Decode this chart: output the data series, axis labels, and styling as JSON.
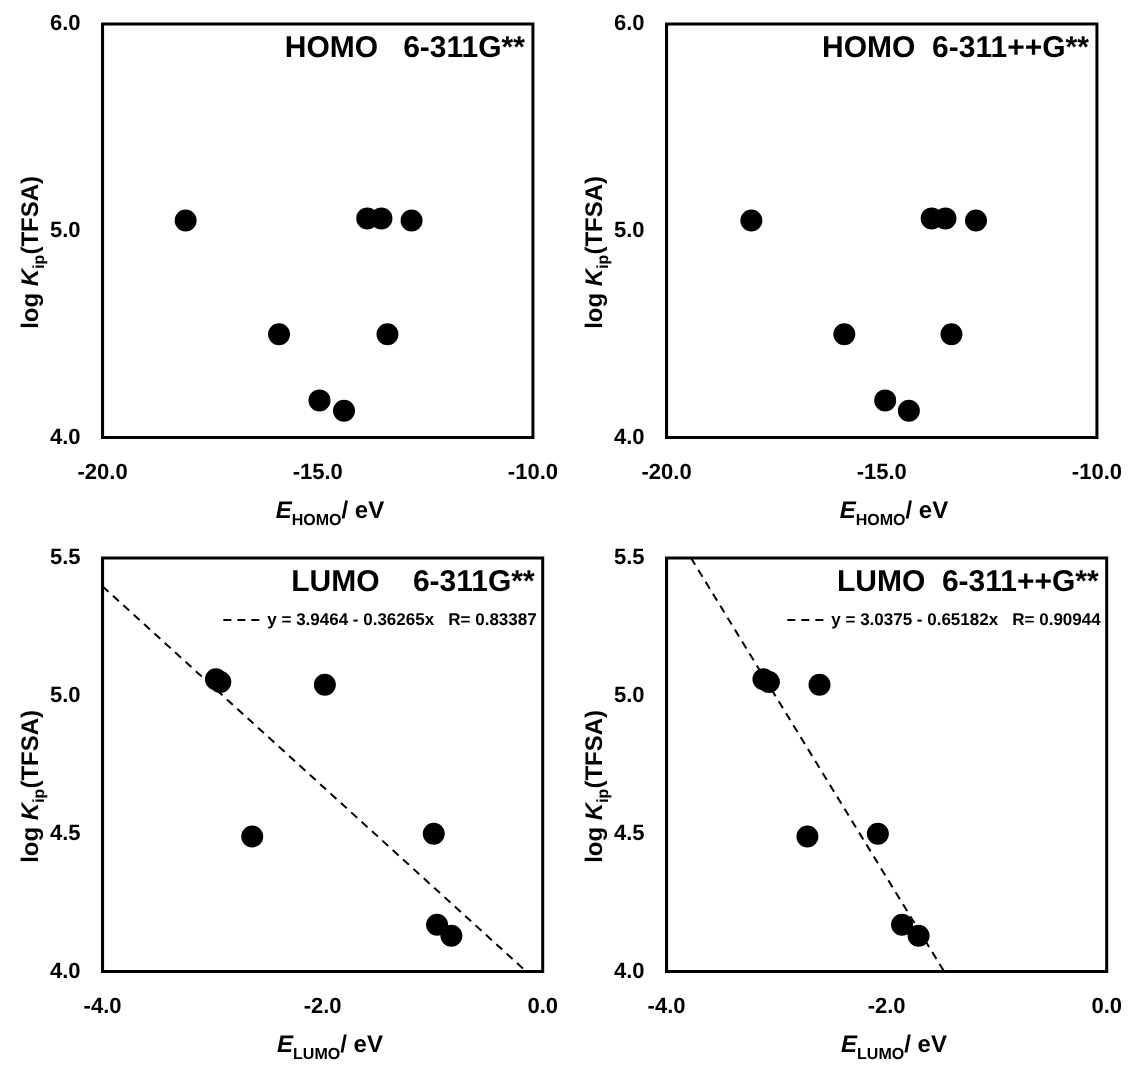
{
  "chart_data": [
    {
      "type": "scatter",
      "title": "HOMO   6-311G**",
      "xlabel": "E$_{HOMO}$/ eV",
      "ylabel": "log K$_{ip}$(TFSA)",
      "xlim": [
        -20,
        -10
      ],
      "xticks": [
        {
          "value": -20,
          "label": "-20.0"
        },
        {
          "value": -15,
          "label": "-15.0"
        },
        {
          "value": -10,
          "label": "-10.0"
        }
      ],
      "ylim": [
        4,
        6
      ],
      "yticks": [
        {
          "value": 4,
          "label": "4.0"
        },
        {
          "value": 5,
          "label": "5.0"
        },
        {
          "value": 6,
          "label": "6.0"
        }
      ],
      "grid": false,
      "legend": false,
      "marker": "circle",
      "series": [
        {
          "color": "#000000",
          "x": [
            -18.07,
            -15.9,
            -14.96,
            -14.39,
            -13.85,
            -13.52,
            -13.38,
            -12.82
          ],
          "values": [
            5.05,
            4.5,
            4.18,
            4.13,
            5.06,
            5.06,
            4.5,
            5.05
          ]
        }
      ]
    },
    {
      "type": "scatter",
      "title": "HOMO  6-311++G**",
      "xlabel": "E$_{HOMO}$/ eV",
      "ylabel": "log K$_{ip}$(TFSA)",
      "xlim": [
        -20,
        -10
      ],
      "xticks": [
        {
          "value": -20,
          "label": "-20.0"
        },
        {
          "value": -15,
          "label": "-15.0"
        },
        {
          "value": -10,
          "label": "-10.0"
        }
      ],
      "ylim": [
        4,
        6
      ],
      "yticks": [
        {
          "value": 4,
          "label": "4.0"
        },
        {
          "value": 5,
          "label": "5.0"
        },
        {
          "value": 6,
          "label": "6.0"
        }
      ],
      "grid": false,
      "legend": false,
      "marker": "circle",
      "series": [
        {
          "color": "#000000",
          "x": [
            -18.03,
            -15.87,
            -14.92,
            -14.37,
            -13.84,
            -13.52,
            -13.38,
            -12.81
          ],
          "values": [
            5.05,
            4.5,
            4.18,
            4.13,
            5.06,
            5.06,
            4.5,
            5.05
          ]
        }
      ]
    },
    {
      "type": "scatter",
      "title": "LUMO    6-311G**",
      "xlabel": "E$_{LUMO}$/ eV",
      "ylabel": "log K$_{ip}$(TFSA)",
      "xlim": [
        -4,
        0
      ],
      "xticks": [
        {
          "value": -4,
          "label": "-4.0"
        },
        {
          "value": -2,
          "label": "-2.0"
        },
        {
          "value": 0,
          "label": "0.0"
        }
      ],
      "ylim": [
        4,
        5.5
      ],
      "yticks": [
        {
          "value": 4,
          "label": "4.0"
        },
        {
          "value": 4.5,
          "label": "4.5"
        },
        {
          "value": 5,
          "label": "5.0"
        },
        {
          "value": 5.5,
          "label": "5.5"
        }
      ],
      "grid": false,
      "legend": "top right",
      "series": [
        {
          "marker": "circle",
          "color": "#000000",
          "x": [
            -2.97,
            -2.93,
            -1.98,
            -2.64,
            -0.99,
            -0.96,
            -0.83
          ],
          "values": [
            5.06,
            5.05,
            5.04,
            4.49,
            4.5,
            4.17,
            4.13
          ]
        },
        {
          "type": "line",
          "name": "y = 3.9464 - 0.36265x   R= 0.83387",
          "color": "#000000",
          "line_style": "dashed",
          "marker": "none",
          "x": [
            -4,
            -0.148
          ],
          "values": [
            5.397,
            4.0
          ]
        }
      ]
    },
    {
      "type": "scatter",
      "title": "LUMO  6-311++G**",
      "xlabel": "E$_{LUMO}$/ eV",
      "ylabel": "log K$_{ip}$(TFSA)",
      "xlim": [
        -4,
        0
      ],
      "xticks": [
        {
          "value": -4,
          "label": "-4.0"
        },
        {
          "value": -2,
          "label": "-2.0"
        },
        {
          "value": 0,
          "label": "0.0"
        }
      ],
      "ylim": [
        4,
        5.5
      ],
      "yticks": [
        {
          "value": 4,
          "label": "4.0"
        },
        {
          "value": 4.5,
          "label": "4.5"
        },
        {
          "value": 5,
          "label": "5.0"
        },
        {
          "value": 5.5,
          "label": "5.5"
        }
      ],
      "grid": false,
      "legend": "top right",
      "series": [
        {
          "marker": "circle",
          "color": "#000000",
          "x": [
            -3.12,
            -3.07,
            -2.61,
            -2.72,
            -2.08,
            -1.86,
            -1.71
          ],
          "values": [
            5.06,
            5.05,
            5.04,
            4.49,
            4.5,
            4.17,
            4.13
          ]
        },
        {
          "type": "line",
          "name": "y = 3.0375 - 0.65182x   R= 0.90944",
          "color": "#000000",
          "line_style": "dashed",
          "marker": "none",
          "x": [
            -3.778,
            -1.477
          ],
          "values": [
            5.5,
            4.0
          ]
        }
      ]
    }
  ]
}
